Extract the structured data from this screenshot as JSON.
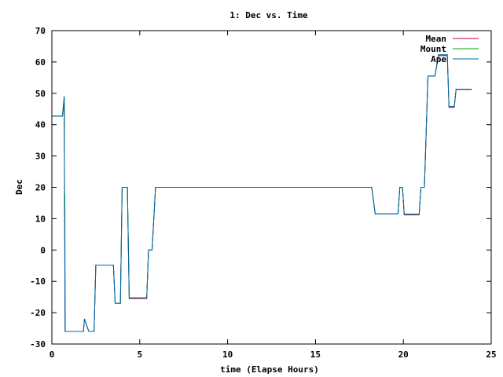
{
  "chart_data": {
    "type": "line",
    "title": "1: Dec vs. Time",
    "xlabel": "time (Elapse Hours)",
    "ylabel": "Dec",
    "xlim": [
      0,
      25
    ],
    "ylim": [
      -30,
      70
    ],
    "xticks": [
      0,
      5,
      10,
      15,
      20,
      25
    ],
    "yticks": [
      -30,
      -20,
      -10,
      0,
      10,
      20,
      30,
      40,
      50,
      60,
      70
    ],
    "grid": false,
    "legend_position": "top-right",
    "series": [
      {
        "name": "Mean",
        "color": "#c0003c",
        "points": [
          [
            0,
            42.7
          ],
          [
            0.6,
            42.7
          ],
          [
            0.7,
            47
          ],
          [
            0.75,
            -26
          ],
          [
            1.8,
            -26
          ],
          [
            1.85,
            -22
          ],
          [
            2.1,
            -26
          ],
          [
            2.4,
            -26
          ],
          [
            2.5,
            -4.8
          ],
          [
            3.5,
            -4.8
          ],
          [
            3.6,
            -17
          ],
          [
            3.9,
            -17
          ],
          [
            4.0,
            20
          ],
          [
            4.3,
            20
          ],
          [
            4.4,
            -15.5
          ],
          [
            5.4,
            -15.5
          ],
          [
            5.5,
            0
          ],
          [
            5.7,
            0
          ],
          [
            5.9,
            20
          ],
          [
            18.2,
            20
          ],
          [
            18.4,
            11.5
          ],
          [
            19.7,
            11.5
          ],
          [
            19.8,
            20
          ],
          [
            19.95,
            20
          ],
          [
            20.05,
            11.2
          ],
          [
            20.9,
            11.2
          ],
          [
            21.0,
            20
          ],
          [
            21.2,
            20
          ],
          [
            21.4,
            55.5
          ],
          [
            21.8,
            55.5
          ],
          [
            22.0,
            62
          ],
          [
            22.5,
            62
          ],
          [
            22.6,
            45.5
          ],
          [
            22.9,
            45.5
          ],
          [
            23.0,
            51.2
          ],
          [
            23.9,
            51.2
          ]
        ]
      },
      {
        "name": "Mount",
        "color": "#00a000",
        "points": [
          [
            0,
            42.7
          ],
          [
            0.6,
            42.7
          ],
          [
            0.7,
            49
          ],
          [
            0.72,
            12
          ],
          [
            0.74,
            18
          ],
          [
            0.76,
            -26
          ],
          [
            1.8,
            -26
          ],
          [
            1.85,
            -22
          ],
          [
            2.1,
            -26
          ],
          [
            2.4,
            -26
          ],
          [
            2.5,
            -4.8
          ],
          [
            3.5,
            -4.8
          ],
          [
            3.6,
            -17
          ],
          [
            3.9,
            -17
          ],
          [
            4.0,
            20
          ],
          [
            4.3,
            20
          ],
          [
            4.4,
            -15.3
          ],
          [
            5.4,
            -15.3
          ],
          [
            5.5,
            0
          ],
          [
            5.7,
            0
          ],
          [
            5.9,
            20
          ],
          [
            18.2,
            20
          ],
          [
            18.4,
            11.5
          ],
          [
            19.7,
            11.5
          ],
          [
            19.8,
            20
          ],
          [
            19.95,
            20
          ],
          [
            20.05,
            11.4
          ],
          [
            20.9,
            11.4
          ],
          [
            21.0,
            20
          ],
          [
            21.2,
            20
          ],
          [
            21.4,
            55.5
          ],
          [
            21.8,
            55.5
          ],
          [
            22.0,
            62.3
          ],
          [
            22.5,
            62.3
          ],
          [
            22.6,
            45.8
          ],
          [
            22.9,
            45.8
          ],
          [
            23.0,
            51.3
          ],
          [
            23.9,
            51.3
          ]
        ]
      },
      {
        "name": "Ape",
        "color": "#0066b3",
        "points": [
          [
            0,
            42.7
          ],
          [
            0.6,
            42.7
          ],
          [
            0.7,
            49
          ],
          [
            0.75,
            -26
          ],
          [
            1.8,
            -26
          ],
          [
            1.85,
            -22
          ],
          [
            2.1,
            -26
          ],
          [
            2.4,
            -26
          ],
          [
            2.5,
            -4.8
          ],
          [
            3.5,
            -4.8
          ],
          [
            3.6,
            -17
          ],
          [
            3.9,
            -17
          ],
          [
            4.0,
            20
          ],
          [
            4.3,
            20
          ],
          [
            4.4,
            -15.3
          ],
          [
            5.4,
            -15.3
          ],
          [
            5.5,
            0
          ],
          [
            5.7,
            0
          ],
          [
            5.9,
            20
          ],
          [
            18.2,
            20
          ],
          [
            18.4,
            11.5
          ],
          [
            19.7,
            11.5
          ],
          [
            19.8,
            20
          ],
          [
            19.95,
            20
          ],
          [
            20.05,
            11.4
          ],
          [
            20.9,
            11.4
          ],
          [
            21.0,
            20
          ],
          [
            21.2,
            20
          ],
          [
            21.4,
            55.5
          ],
          [
            21.8,
            55.5
          ],
          [
            22.0,
            62.3
          ],
          [
            22.5,
            62.3
          ],
          [
            22.6,
            45.8
          ],
          [
            22.9,
            45.8
          ],
          [
            23.0,
            51.3
          ],
          [
            23.9,
            51.3
          ]
        ]
      }
    ]
  }
}
